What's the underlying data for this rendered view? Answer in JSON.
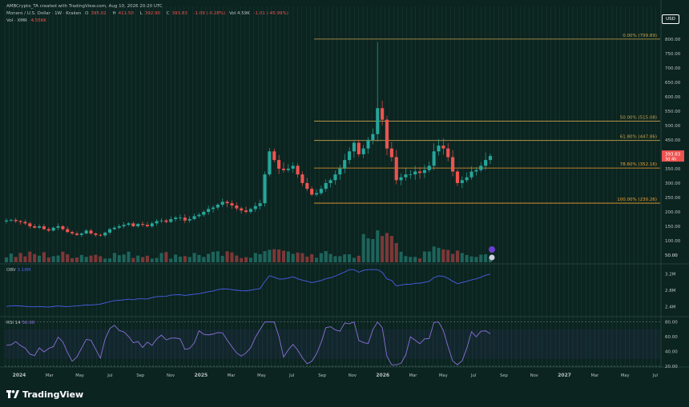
{
  "header": {
    "publisher": "AMBCrypto_TA created with TradingView.com, Aug 10, 2026 20:20 UTC",
    "symbol_line": "Monero / U.S. Dollar · 1W · Kraken",
    "ohlc": {
      "o_label": "O",
      "o": "395.02",
      "h_label": "H",
      "h": "411.50",
      "l_label": "L",
      "l": "392.90",
      "c_label": "C",
      "c": "393.83",
      "chg": "-1.09 (-0.28%)"
    },
    "vol_line": {
      "label": "Vol 4.59K",
      "chg": "-1.01 (-45.99%)"
    },
    "vol_xmr": {
      "label": "Vol · XMR",
      "value": "4.556K"
    },
    "currency_button": "USD"
  },
  "chart_data": {
    "type": "candlestick",
    "instrument": "Monero / U.S. Dollar",
    "timeframe": "1W",
    "exchange": "Kraken",
    "y_axis_ticks": [
      "800.00",
      "750.00",
      "700.00",
      "650.00",
      "600.00",
      "550.00",
      "500.00",
      "450.00",
      "400.00",
      "350.00",
      "300.00",
      "250.00",
      "200.00",
      "150.00",
      "100.00",
      "50.00"
    ],
    "x_axis_ticks": [
      "2024",
      "Mar",
      "May",
      "Jul",
      "Sep",
      "Nov",
      "2025",
      "Mar",
      "May",
      "Jul",
      "Sep",
      "Nov",
      "2026",
      "Mar",
      "May",
      "Jul",
      "Sep",
      "Nov",
      "2027",
      "Mar",
      "May",
      "Jul"
    ],
    "price_range": [
      25,
      830
    ],
    "current_price": {
      "value": "393.83",
      "countdown": "3d 4h",
      "y": 393.83
    },
    "fibonacci_levels": [
      {
        "label": "0.00% (799.89)",
        "value": 799.89,
        "color": "#c8a24a"
      },
      {
        "label": "50.00% (515.08)",
        "value": 515.08,
        "color": "#c8a24a"
      },
      {
        "label": "61.80% (447.86)",
        "value": 447.86,
        "color": "#c8a24a"
      },
      {
        "label": "78.60% (352.16)",
        "value": 352.16,
        "color": "#f0a030"
      },
      {
        "label": "100.00% (230.26)",
        "value": 230.26,
        "color": "#f0a030"
      }
    ],
    "candles_close": [
      170,
      172,
      168,
      165,
      160,
      150,
      145,
      150,
      140,
      135,
      145,
      150,
      140,
      130,
      125,
      120,
      125,
      135,
      125,
      120,
      118,
      128,
      140,
      145,
      150,
      155,
      160,
      150,
      158,
      155,
      150,
      160,
      168,
      170,
      165,
      175,
      180,
      180,
      170,
      175,
      185,
      190,
      200,
      210,
      215,
      225,
      235,
      230,
      222,
      212,
      205,
      200,
      210,
      220,
      230,
      330,
      410,
      380,
      350,
      345,
      350,
      360,
      330,
      300,
      280,
      260,
      265,
      280,
      300,
      310,
      330,
      350,
      380,
      410,
      440,
      400,
      420,
      450,
      470,
      560,
      520,
      420,
      390,
      310,
      320,
      330,
      330,
      340,
      335,
      345,
      360,
      410,
      430,
      420,
      390,
      340,
      300,
      310,
      320,
      340,
      345,
      360,
      380,
      393.83
    ],
    "volume_max": 140,
    "volume_axis": "50.00",
    "obv": {
      "label": "OBV",
      "value": "3.18M",
      "ticks": [
        "3.2M",
        "2.8M",
        "2.4M"
      ],
      "range": [
        2.2,
        3.4
      ]
    },
    "rsi": {
      "label": "RSI 14",
      "value": "56.96",
      "ticks": [
        "80.00",
        "60.00",
        "40.00",
        "20.00"
      ],
      "range": [
        20,
        85
      ]
    },
    "colors": {
      "up": "#26a69a",
      "down": "#ef5350",
      "background": "#0b2420",
      "obv": "#4a5ee8",
      "rsi": "#8a6fd8",
      "grid": "#1c3834",
      "fib": "#f0a030"
    }
  },
  "footer": {
    "logo_text": "TradingView"
  }
}
